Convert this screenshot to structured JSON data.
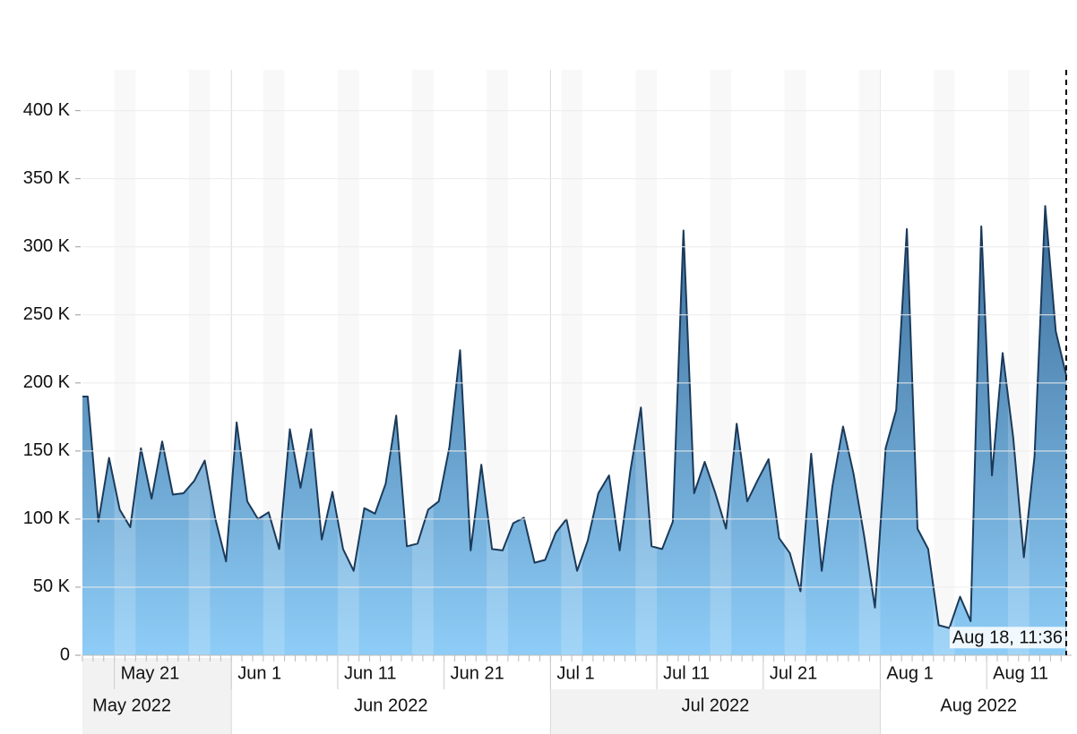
{
  "chart_data": {
    "type": "area",
    "x": [
      "2022-05-18",
      "2022-05-19",
      "2022-05-20",
      "2022-05-21",
      "2022-05-22",
      "2022-05-23",
      "2022-05-24",
      "2022-05-25",
      "2022-05-26",
      "2022-05-27",
      "2022-05-28",
      "2022-05-29",
      "2022-05-30",
      "2022-05-31",
      "2022-06-01",
      "2022-06-02",
      "2022-06-03",
      "2022-06-04",
      "2022-06-05",
      "2022-06-06",
      "2022-06-07",
      "2022-06-08",
      "2022-06-09",
      "2022-06-10",
      "2022-06-11",
      "2022-06-12",
      "2022-06-13",
      "2022-06-14",
      "2022-06-15",
      "2022-06-16",
      "2022-06-17",
      "2022-06-18",
      "2022-06-19",
      "2022-06-20",
      "2022-06-21",
      "2022-06-22",
      "2022-06-23",
      "2022-06-24",
      "2022-06-25",
      "2022-06-26",
      "2022-06-27",
      "2022-06-28",
      "2022-06-29",
      "2022-06-30",
      "2022-07-01",
      "2022-07-02",
      "2022-07-03",
      "2022-07-04",
      "2022-07-05",
      "2022-07-06",
      "2022-07-07",
      "2022-07-08",
      "2022-07-09",
      "2022-07-10",
      "2022-07-11",
      "2022-07-12",
      "2022-07-13",
      "2022-07-14",
      "2022-07-15",
      "2022-07-16",
      "2022-07-17",
      "2022-07-18",
      "2022-07-19",
      "2022-07-20",
      "2022-07-21",
      "2022-07-22",
      "2022-07-23",
      "2022-07-24",
      "2022-07-25",
      "2022-07-26",
      "2022-07-27",
      "2022-07-28",
      "2022-07-29",
      "2022-07-30",
      "2022-07-31",
      "2022-08-01",
      "2022-08-02",
      "2022-08-03",
      "2022-08-04",
      "2022-08-05",
      "2022-08-06",
      "2022-08-07",
      "2022-08-08",
      "2022-08-09",
      "2022-08-10",
      "2022-08-11",
      "2022-08-12",
      "2022-08-13",
      "2022-08-14",
      "2022-08-15",
      "2022-08-16",
      "2022-08-17",
      "2022-08-18"
    ],
    "values": [
      190000,
      98000,
      145000,
      107000,
      94000,
      152000,
      115000,
      157000,
      118000,
      119000,
      128000,
      143000,
      100000,
      69000,
      171000,
      113000,
      100000,
      105000,
      78000,
      166000,
      123000,
      166000,
      85000,
      120000,
      78000,
      62000,
      108000,
      104000,
      126000,
      176000,
      80000,
      82000,
      107000,
      113000,
      153000,
      224000,
      77000,
      140000,
      78000,
      77000,
      97000,
      101000,
      68000,
      70000,
      90000,
      100000,
      62000,
      84000,
      119000,
      132000,
      77000,
      135000,
      182000,
      80000,
      78000,
      98000,
      312000,
      119000,
      142000,
      119000,
      93000,
      170000,
      113000,
      129000,
      144000,
      86000,
      75000,
      47000,
      148000,
      62000,
      124000,
      168000,
      133000,
      87000,
      35000,
      152000,
      180000,
      313000,
      93000,
      78000,
      22000,
      20000,
      43000,
      25000,
      315000,
      132000,
      222000,
      160000,
      72000,
      146000,
      330000,
      238000,
      205000
    ],
    "color": "#1b3a5a",
    "fill_colors": [
      "#3d6f9c",
      "#8ecdf7"
    ],
    "xlim": [
      "2022-05-18T00:00",
      "2022-08-18T11:36"
    ],
    "ylim": [
      0,
      430000
    ],
    "yticks": [
      0,
      {
        "value": 50000,
        "label": "50 K"
      },
      {
        "value": 100000,
        "label": "100 K"
      },
      {
        "value": 150000,
        "label": "150 K"
      },
      {
        "value": 200000,
        "label": "200 K"
      },
      {
        "value": 250000,
        "label": "250 K"
      },
      {
        "value": 300000,
        "label": "300 K"
      },
      {
        "value": 350000,
        "label": "350 K"
      },
      {
        "value": 400000,
        "label": "400 K"
      }
    ],
    "xticks": [
      {
        "value": "2022-05-21",
        "label": "May 21"
      },
      {
        "value": "2022-06-01",
        "label": "Jun 1"
      },
      {
        "value": "2022-06-11",
        "label": "Jun 11"
      },
      {
        "value": "2022-06-21",
        "label": "Jun 21"
      },
      {
        "value": "2022-07-01",
        "label": "Jul 1"
      },
      {
        "value": "2022-07-11",
        "label": "Jul 11"
      },
      {
        "value": "2022-07-21",
        "label": "Jul 21"
      },
      {
        "value": "2022-08-01",
        "label": "Aug 1"
      },
      {
        "value": "2022-08-11",
        "label": "Aug 11"
      }
    ],
    "month_ticks": [
      {
        "value": "2022-05-01",
        "label": "May 2022"
      },
      {
        "value": "2022-06-01",
        "label": "Jun 2022"
      },
      {
        "value": "2022-07-01",
        "label": "Jul 2022"
      },
      {
        "value": "2022-08-01",
        "label": "Aug 2022"
      }
    ],
    "cursor_label": "Aug 18, 11:36",
    "grid": true
  }
}
